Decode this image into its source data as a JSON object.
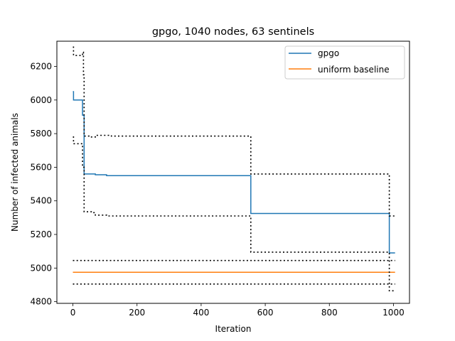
{
  "chart_data": {
    "type": "line",
    "title": "gpgo, 1040 nodes, 63 sentinels",
    "xlabel": "Iteration",
    "ylabel": "Number of infected animals",
    "xlim": [
      -50,
      1050
    ],
    "ylim": [
      4790,
      6350
    ],
    "xticks": [
      0,
      200,
      400,
      600,
      800,
      1000
    ],
    "yticks": [
      4800,
      5000,
      5200,
      5400,
      5600,
      5800,
      6000,
      6200
    ],
    "grid": false,
    "legend_position": "top-right",
    "series": [
      {
        "name": "gpgo",
        "color": "#1f77b4",
        "style": "solid",
        "step": true,
        "points": [
          [
            0,
            6050
          ],
          [
            2,
            6000
          ],
          [
            27,
            6000
          ],
          [
            30,
            5910
          ],
          [
            35,
            5560
          ],
          [
            70,
            5555
          ],
          [
            105,
            5550
          ],
          [
            553,
            5550
          ],
          [
            555,
            5325
          ],
          [
            985,
            5325
          ],
          [
            987,
            5090
          ],
          [
            1005,
            5090
          ]
        ]
      },
      {
        "name": "uniform baseline",
        "color": "#ff7f0e",
        "style": "solid",
        "step": false,
        "points": [
          [
            0,
            4975
          ],
          [
            1005,
            4975
          ]
        ]
      },
      {
        "name": "",
        "color": "#000000",
        "style": "dotted",
        "step": true,
        "points": [
          [
            0,
            6315
          ],
          [
            2,
            6265
          ],
          [
            27,
            6265
          ],
          [
            30,
            6285
          ],
          [
            33,
            6150
          ],
          [
            35,
            5785
          ],
          [
            50,
            5780
          ],
          [
            70,
            5790
          ],
          [
            105,
            5790
          ],
          [
            120,
            5785
          ],
          [
            553,
            5785
          ],
          [
            555,
            5560
          ],
          [
            985,
            5560
          ],
          [
            987,
            5310
          ],
          [
            1005,
            5310
          ]
        ]
      },
      {
        "name": "",
        "color": "#000000",
        "style": "dotted",
        "step": true,
        "points": [
          [
            0,
            5780
          ],
          [
            2,
            5740
          ],
          [
            27,
            5740
          ],
          [
            30,
            5600
          ],
          [
            35,
            5335
          ],
          [
            60,
            5330
          ],
          [
            70,
            5315
          ],
          [
            105,
            5310
          ],
          [
            553,
            5310
          ],
          [
            555,
            5095
          ],
          [
            985,
            5095
          ],
          [
            987,
            4865
          ],
          [
            1005,
            4865
          ]
        ]
      },
      {
        "name": "",
        "color": "#000000",
        "style": "dotted",
        "step": false,
        "points": [
          [
            0,
            5045
          ],
          [
            1005,
            5045
          ]
        ]
      },
      {
        "name": "",
        "color": "#000000",
        "style": "dotted",
        "step": false,
        "points": [
          [
            0,
            4905
          ],
          [
            1005,
            4905
          ]
        ]
      }
    ]
  }
}
